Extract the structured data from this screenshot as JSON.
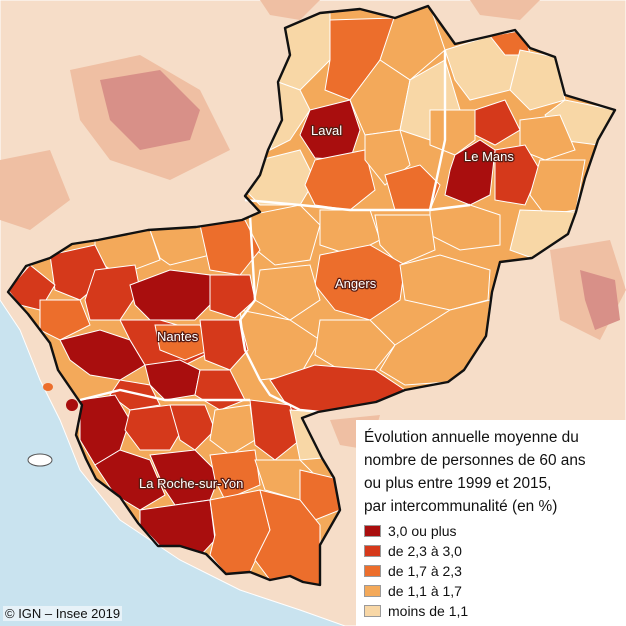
{
  "colors": {
    "sea": "#c9e3ef",
    "outside_land": "#f6ddc8",
    "outside_land_mid": "#efbfa3",
    "outside_land_dark": "#d89088",
    "region_border": "#111111",
    "interco_border": "#ffffff"
  },
  "legend": {
    "title_lines": [
      "Évolution annuelle moyenne du",
      "nombre de personnes de 60 ans",
      "ou plus entre 1999 et 2015,",
      "par intercommunalité (en %)"
    ],
    "classes": [
      {
        "label": "3,0 ou plus",
        "color": "#a90e0e"
      },
      {
        "label": "de 2,3 à 3,0",
        "color": "#d5391b"
      },
      {
        "label": "de 1,7 à 2,3",
        "color": "#ec6e2c"
      },
      {
        "label": "de 1,1 à 1,7",
        "color": "#f3a95a"
      },
      {
        "label": "moins de 1,1",
        "color": "#f8d7a6"
      }
    ]
  },
  "cities": [
    {
      "name": "Laval"
    },
    {
      "name": "Le Mans"
    },
    {
      "name": "Angers"
    },
    {
      "name": "Nantes"
    },
    {
      "name": "La Roche-sur-Yon"
    }
  ],
  "source": "© IGN – Insee 2019"
}
